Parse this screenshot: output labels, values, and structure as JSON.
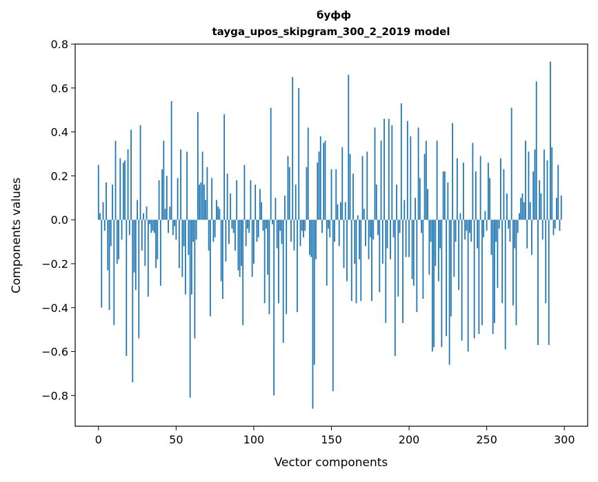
{
  "chart_data": {
    "type": "bar",
    "title": "буфф",
    "subtitle": "tayga_upos_skipgram_300_2_2019 model",
    "xlabel": "Vector components",
    "ylabel": "Components values",
    "xlim": [
      -15,
      315
    ],
    "ylim": [
      -0.94,
      0.8
    ],
    "xticks": [
      0,
      50,
      100,
      150,
      200,
      250,
      300
    ],
    "yticks": [
      -0.8,
      -0.6,
      -0.4,
      -0.2,
      0.0,
      0.2,
      0.4,
      0.6,
      0.8
    ],
    "ytick_labels": [
      "−0.8",
      "−0.6",
      "−0.4",
      "−0.2",
      "0.0",
      "0.2",
      "0.4",
      "0.6",
      "0.8"
    ],
    "bar_color": "#1f77b4",
    "values": [
      0.25,
      0.03,
      -0.4,
      0.08,
      -0.05,
      0.17,
      -0.23,
      -0.41,
      -0.12,
      0.16,
      -0.48,
      0.36,
      -0.2,
      -0.18,
      0.28,
      -0.09,
      0.26,
      0.27,
      -0.62,
      0.32,
      -0.07,
      0.41,
      -0.74,
      -0.24,
      -0.32,
      0.09,
      -0.54,
      0.43,
      -0.14,
      0.03,
      -0.21,
      0.06,
      -0.35,
      -0.02,
      -0.06,
      -0.05,
      -0.06,
      -0.22,
      -0.18,
      0.18,
      -0.3,
      0.23,
      0.36,
      0.05,
      0.2,
      -0.06,
      0.06,
      0.54,
      -0.07,
      -0.03,
      -0.09,
      0.19,
      -0.22,
      0.32,
      -0.26,
      -0.12,
      -0.34,
      0.31,
      -0.16,
      -0.81,
      -0.34,
      -0.1,
      -0.54,
      -0.09,
      0.49,
      0.16,
      0.17,
      0.31,
      0.16,
      0.09,
      0.24,
      -0.14,
      -0.44,
      0.19,
      -0.1,
      -0.08,
      0.09,
      0.06,
      0.05,
      -0.28,
      -0.36,
      0.48,
      -0.19,
      0.21,
      -0.11,
      0.12,
      -0.04,
      -0.06,
      -0.14,
      0.18,
      -0.23,
      -0.26,
      -0.21,
      -0.48,
      0.25,
      -0.12,
      -0.04,
      -0.06,
      0.18,
      -0.26,
      -0.2,
      0.16,
      -0.1,
      -0.08,
      0.14,
      0.08,
      -0.05,
      -0.38,
      -0.04,
      -0.25,
      -0.43,
      0.51,
      -0.02,
      -0.8,
      0.1,
      -0.13,
      -0.38,
      -0.05,
      -0.11,
      -0.56,
      0.11,
      -0.43,
      0.29,
      0.24,
      -0.1,
      0.65,
      -0.14,
      0.16,
      -0.42,
      0.6,
      -0.12,
      -0.05,
      -0.08,
      -0.05,
      0.24,
      0.42,
      -0.16,
      -0.17,
      -0.86,
      -0.66,
      -0.18,
      0.26,
      0.31,
      0.38,
      -0.06,
      0.35,
      0.36,
      -0.3,
      -0.04,
      -0.08,
      0.23,
      -0.78,
      -0.1,
      0.23,
      0.07,
      -0.12,
      0.08,
      0.33,
      -0.22,
      0.08,
      -0.28,
      0.66,
      0.3,
      -0.37,
      0.21,
      -0.2,
      -0.38,
      0.02,
      -0.18,
      -0.37,
      0.29,
      0.05,
      -0.12,
      0.31,
      -0.18,
      -0.08,
      -0.37,
      -0.09,
      0.42,
      0.16,
      -0.07,
      -0.33,
      0.36,
      -0.2,
      0.46,
      -0.47,
      -0.13,
      0.46,
      -0.18,
      0.43,
      -0.08,
      -0.62,
      0.16,
      -0.35,
      -0.06,
      0.53,
      -0.47,
      0.09,
      -0.17,
      0.45,
      -0.17,
      0.38,
      -0.27,
      -0.3,
      0.1,
      -0.42,
      0.42,
      0.19,
      -0.06,
      -0.36,
      0.3,
      0.36,
      0.14,
      -0.25,
      -0.1,
      -0.6,
      -0.58,
      -0.21,
      0.36,
      -0.28,
      -0.13,
      -0.58,
      0.22,
      0.22,
      -0.53,
      0.17,
      -0.66,
      -0.44,
      0.44,
      -0.26,
      -0.1,
      0.28,
      -0.32,
      0.03,
      -0.55,
      0.26,
      -0.09,
      -0.05,
      -0.6,
      -0.06,
      -0.1,
      0.35,
      -0.54,
      0.22,
      -0.13,
      -0.52,
      0.29,
      -0.48,
      -0.08,
      0.04,
      -0.05,
      0.26,
      0.19,
      -0.16,
      -0.52,
      -0.47,
      -0.1,
      -0.31,
      -0.04,
      0.28,
      -0.38,
      0.23,
      -0.59,
      0.12,
      -0.04,
      -0.1,
      0.51,
      -0.39,
      -0.13,
      -0.48,
      -0.06,
      0.03,
      0.1,
      0.12,
      0.08,
      0.36,
      -0.13,
      0.31,
      0.08,
      -0.16,
      0.22,
      0.32,
      0.63,
      -0.57,
      0.18,
      0.12,
      -0.09,
      0.32,
      -0.38,
      0.27,
      -0.57,
      0.72,
      0.33,
      -0.07,
      -0.04,
      0.1,
      0.25,
      -0.05,
      0.11
    ]
  }
}
